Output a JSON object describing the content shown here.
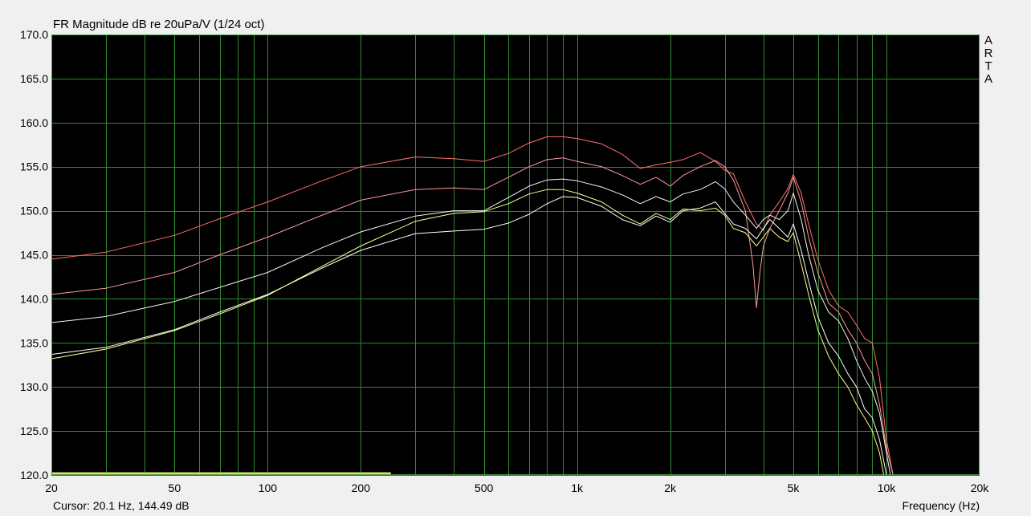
{
  "chart_data": {
    "type": "line",
    "title": "FR Magnitude dB re 20uPa/V (1/24 oct)",
    "xlabel": "Frequency (Hz)",
    "ylabel": "",
    "x_scale": "log",
    "xlim": [
      20,
      20000
    ],
    "ylim": [
      120,
      170
    ],
    "grid": true,
    "y_ticks": [
      "120.0",
      "125.0",
      "130.0",
      "135.0",
      "140.0",
      "145.0",
      "150.0",
      "155.0",
      "160.0",
      "165.0",
      "170.0"
    ],
    "y_tick_values": [
      120,
      125,
      130,
      135,
      140,
      145,
      150,
      155,
      160,
      165,
      170
    ],
    "x_ticks": [
      "20",
      "50",
      "100",
      "200",
      "500",
      "1k",
      "2k",
      "5k",
      "10k",
      "20k"
    ],
    "x_tick_values": [
      20,
      50,
      100,
      200,
      500,
      1000,
      2000,
      5000,
      10000,
      20000
    ],
    "series": [
      {
        "color": "#ff7070",
        "x": [
          20,
          30,
          50,
          70,
          100,
          150,
          200,
          300,
          400,
          500,
          600,
          700,
          800,
          900,
          1000,
          1200,
          1400,
          1600,
          1800,
          2000,
          2200,
          2500,
          2800,
          3000,
          3200,
          3500,
          3800,
          4000,
          4200,
          4500,
          4800,
          5000,
          5300,
          5600,
          6000,
          6500,
          7000,
          7500,
          8000,
          8500,
          9000,
          9500,
          10000,
          10500
        ],
        "y": [
          144.5,
          145.3,
          147.2,
          149.1,
          151.0,
          153.4,
          155.0,
          156.1,
          155.9,
          155.6,
          156.5,
          157.7,
          158.4,
          158.4,
          158.2,
          157.6,
          156.4,
          154.8,
          155.2,
          155.5,
          155.8,
          156.6,
          155.6,
          154.6,
          154.2,
          151.0,
          148.5,
          147.8,
          149.5,
          151.0,
          152.5,
          154.1,
          152.0,
          148.5,
          144.5,
          141.0,
          139.2,
          138.5,
          137.0,
          135.5,
          135.0,
          131.0,
          124.0,
          120.0
        ]
      },
      {
        "color": "#ff9a9a",
        "x": [
          20,
          30,
          50,
          70,
          100,
          150,
          200,
          300,
          400,
          500,
          600,
          700,
          800,
          900,
          1000,
          1200,
          1400,
          1600,
          1800,
          2000,
          2200,
          2500,
          2800,
          3000,
          3200,
          3500,
          3700,
          3800,
          3900,
          4000,
          4200,
          4500,
          4800,
          5000,
          5300,
          5600,
          6000,
          6500,
          7000,
          7500,
          8000,
          8500,
          9000,
          9500,
          10000,
          10500
        ],
        "y": [
          140.5,
          141.2,
          143.0,
          145.0,
          147.0,
          149.5,
          151.2,
          152.4,
          152.6,
          152.4,
          153.8,
          155.0,
          155.8,
          156.0,
          155.6,
          155.0,
          154.0,
          153.0,
          153.8,
          152.8,
          154.0,
          155.0,
          155.7,
          155.0,
          153.5,
          150.0,
          144.0,
          139.0,
          143.0,
          146.0,
          148.0,
          150.0,
          152.0,
          153.8,
          151.0,
          147.0,
          143.0,
          139.5,
          138.5,
          136.5,
          135.0,
          133.0,
          131.5,
          128.0,
          123.0,
          120.0
        ]
      },
      {
        "color": "#f4f4f4",
        "x": [
          20,
          30,
          50,
          70,
          100,
          150,
          200,
          300,
          400,
          500,
          600,
          700,
          800,
          900,
          1000,
          1200,
          1400,
          1600,
          1800,
          2000,
          2200,
          2500,
          2800,
          3000,
          3200,
          3500,
          3800,
          4000,
          4200,
          4500,
          4800,
          5000,
          5300,
          5600,
          6000,
          6500,
          7000,
          7500,
          8000,
          8500,
          9000,
          9500,
          10000,
          10300
        ],
        "y": [
          137.3,
          138.0,
          139.7,
          141.3,
          143.0,
          145.8,
          147.6,
          149.4,
          150.0,
          150.0,
          151.5,
          152.8,
          153.5,
          153.6,
          153.4,
          152.7,
          151.8,
          150.8,
          151.6,
          151.0,
          151.9,
          152.4,
          153.3,
          152.5,
          151.0,
          149.5,
          148.0,
          149.0,
          149.5,
          149.0,
          150.0,
          152.0,
          149.0,
          145.0,
          141.0,
          138.5,
          137.5,
          135.5,
          133.0,
          131.0,
          129.5,
          127.0,
          122.5,
          120.0
        ]
      },
      {
        "color": "#ffffff",
        "x": [
          20,
          30,
          50,
          70,
          100,
          150,
          200,
          300,
          400,
          500,
          600,
          700,
          800,
          900,
          1000,
          1200,
          1400,
          1600,
          1800,
          2000,
          2200,
          2500,
          2800,
          3000,
          3200,
          3500,
          3800,
          4000,
          4200,
          4500,
          4800,
          5000,
          5300,
          5600,
          6000,
          6500,
          7000,
          7500,
          8000,
          8500,
          9000,
          9500,
          10000
        ],
        "y": [
          133.7,
          134.5,
          136.5,
          138.5,
          140.5,
          143.5,
          145.5,
          147.4,
          147.7,
          147.9,
          148.6,
          149.6,
          150.8,
          151.6,
          151.5,
          150.5,
          149.0,
          148.3,
          149.4,
          148.7,
          150.0,
          150.3,
          151.0,
          149.7,
          148.5,
          148.0,
          146.8,
          148.0,
          149.0,
          148.0,
          147.0,
          148.5,
          145.5,
          142.0,
          138.0,
          135.0,
          133.5,
          131.5,
          130.0,
          127.5,
          126.5,
          124.0,
          120.0
        ]
      },
      {
        "color": "#ffff90",
        "x": [
          20,
          30,
          50,
          70,
          100,
          150,
          200,
          300,
          400,
          500,
          600,
          700,
          800,
          900,
          1000,
          1200,
          1400,
          1600,
          1800,
          2000,
          2200,
          2500,
          2800,
          3000,
          3200,
          3500,
          3800,
          4000,
          4200,
          4500,
          4800,
          5000,
          5300,
          5600,
          6000,
          6500,
          7000,
          7500,
          8000,
          8500,
          9000,
          9500,
          9800
        ],
        "y": [
          133.2,
          134.3,
          136.4,
          138.3,
          140.4,
          143.7,
          146.0,
          148.8,
          149.7,
          149.9,
          150.8,
          151.9,
          152.4,
          152.4,
          152.0,
          151.0,
          149.5,
          148.5,
          149.7,
          149.0,
          150.2,
          150.0,
          150.3,
          149.5,
          148.0,
          147.5,
          146.0,
          147.0,
          148.0,
          147.0,
          146.5,
          147.5,
          144.0,
          140.5,
          136.5,
          133.5,
          131.5,
          130.0,
          128.0,
          126.5,
          125.0,
          122.5,
          120.0
        ]
      },
      {
        "color": "#dede5a",
        "x": [
          20,
          250
        ],
        "y": [
          120.2,
          120.2
        ]
      }
    ]
  },
  "cursor_readout": "Cursor: 20.1 Hz, 144.49 dB",
  "brand_letters": [
    "A",
    "R",
    "T",
    "A"
  ],
  "colors": {
    "plot_bg": "#000000",
    "grid": "#2f8a2f",
    "frame": "#4a9a4a",
    "window_bg": "#f0f0f0"
  }
}
